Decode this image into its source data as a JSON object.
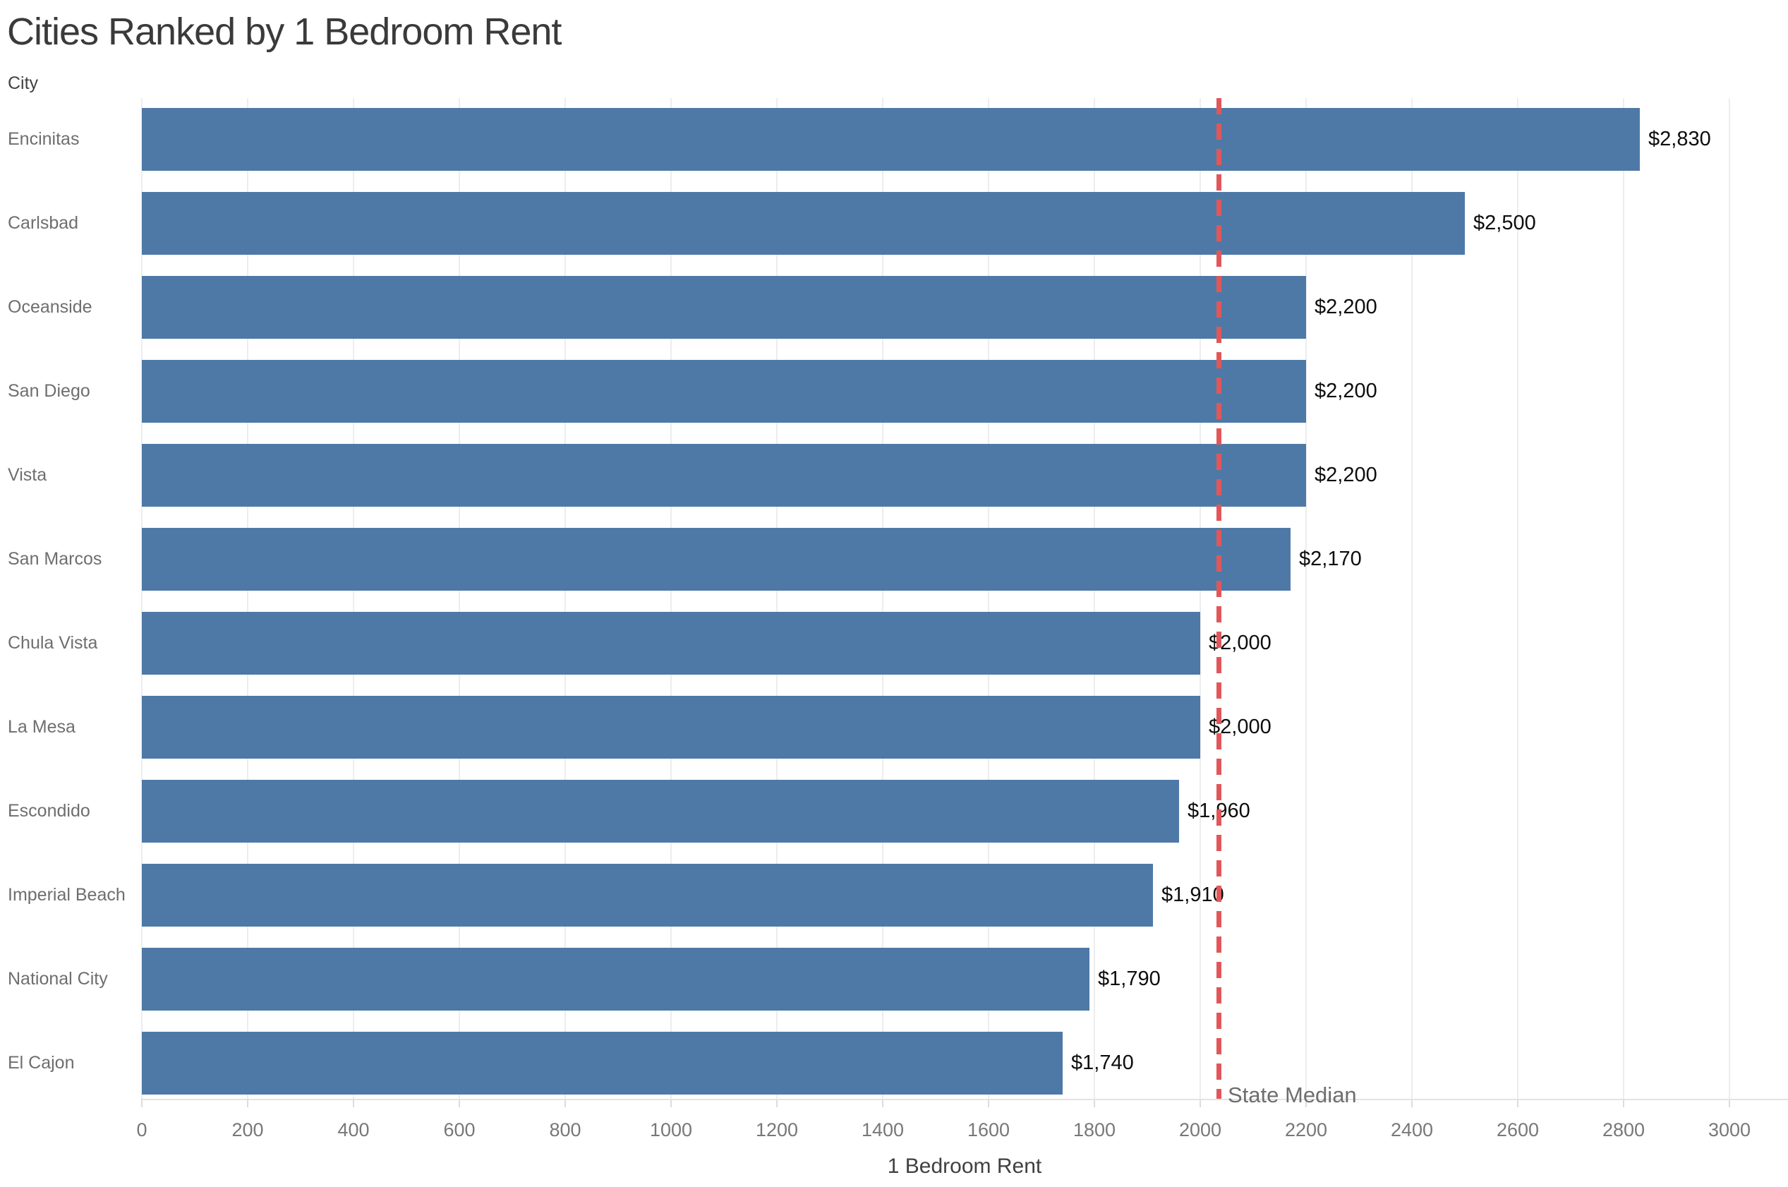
{
  "title": "Cities Ranked by 1 Bedroom Rent",
  "row_axis_header": "City",
  "x_axis_title": "1 Bedroom Rent",
  "colors": {
    "bar": "#4e79a7",
    "reference_line": "#e15759",
    "gridline": "#ededed",
    "title_text": "#3a3a3a",
    "city_label": "#6e6e6e",
    "tick_label": "#787878",
    "value_label": "#0d0d0d"
  },
  "chart_data": {
    "type": "bar",
    "orientation": "horizontal",
    "title": "Cities Ranked by 1 Bedroom Rent",
    "xlabel": "1 Bedroom Rent",
    "ylabel": "City",
    "xlim": [
      0,
      3110
    ],
    "x_ticks": [
      0,
      200,
      400,
      600,
      800,
      1000,
      1200,
      1400,
      1600,
      1800,
      2000,
      2200,
      2400,
      2600,
      2800,
      3000
    ],
    "grid": true,
    "categories": [
      "Encinitas",
      "Carlsbad",
      "Oceanside",
      "San Diego",
      "Vista",
      "San Marcos",
      "Chula Vista",
      "La Mesa",
      "Escondido",
      "Imperial Beach",
      "National City",
      "El Cajon"
    ],
    "values": [
      2830,
      2500,
      2200,
      2200,
      2200,
      2170,
      2000,
      2000,
      1960,
      1910,
      1790,
      1740
    ],
    "value_labels": [
      "$2,830",
      "$2,500",
      "$2,200",
      "$2,200",
      "$2,200",
      "$2,170",
      "$2,000",
      "$2,000",
      "$1,960",
      "$1,910",
      "$1,790",
      "$1,740"
    ],
    "reference_line": {
      "label": "State Median",
      "value": 2035,
      "style": "dashed",
      "color": "#e15759"
    }
  }
}
